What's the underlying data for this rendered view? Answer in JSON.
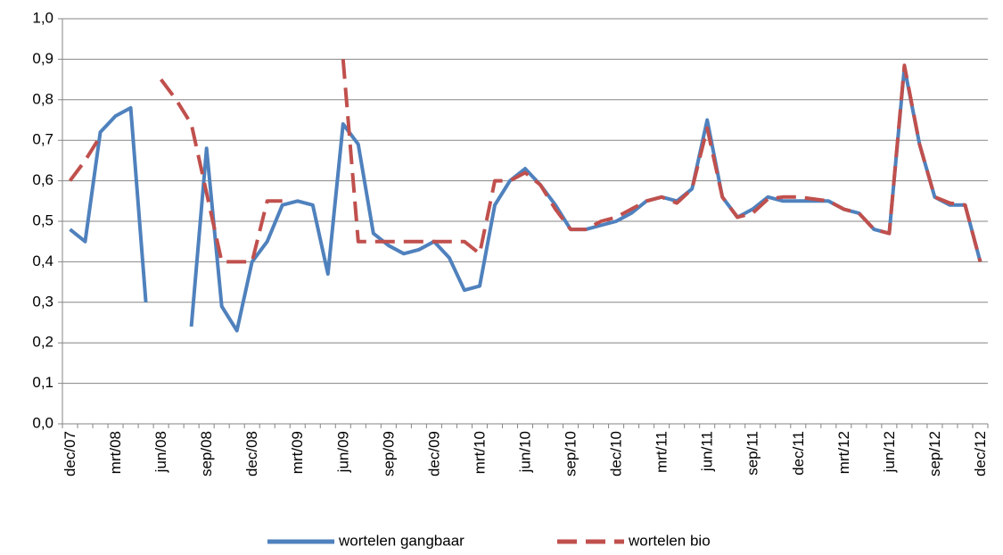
{
  "chart_data": {
    "type": "line",
    "categories": [
      "dec/07",
      null,
      null,
      "mrt/08",
      null,
      null,
      "jun/08",
      null,
      null,
      "sep/08",
      null,
      null,
      "dec/08",
      null,
      null,
      "mrt/09",
      null,
      null,
      "jun/09",
      null,
      null,
      "sep/09",
      null,
      null,
      "dec/09",
      null,
      null,
      "mrt/10",
      null,
      null,
      "jun/10",
      null,
      null,
      "sep/10",
      null,
      null,
      "dec/10",
      null,
      null,
      "mrt/11",
      null,
      null,
      "jun/11",
      null,
      null,
      "sep/11",
      null,
      null,
      "dec/11",
      null,
      null,
      "mrt/12",
      null,
      null,
      "jun/12",
      null,
      null,
      "sep/12",
      null,
      null,
      "dec/12"
    ],
    "series": [
      {
        "name": "wortelen gangbaar",
        "color": "#4f81bd",
        "dash": false,
        "values": [
          0.48,
          0.45,
          0.72,
          0.76,
          0.78,
          0.3,
          null,
          null,
          0.24,
          0.68,
          0.29,
          0.23,
          0.4,
          0.45,
          0.54,
          0.55,
          0.54,
          0.37,
          0.74,
          0.69,
          0.47,
          0.44,
          0.42,
          0.43,
          0.45,
          0.41,
          0.33,
          0.34,
          0.54,
          0.6,
          0.63,
          0.59,
          0.54,
          0.48,
          0.48,
          0.49,
          0.5,
          0.52,
          0.55,
          0.56,
          0.55,
          0.58,
          0.75,
          0.56,
          0.51,
          0.53,
          0.56,
          0.55,
          0.55,
          0.55,
          0.55,
          0.53,
          0.52,
          0.48,
          0.47,
          0.88,
          0.69,
          0.56,
          0.54,
          0.54,
          0.4
        ]
      },
      {
        "name": "wortelen bio",
        "color": "#c0504d",
        "dash": true,
        "values": [
          0.6,
          0.65,
          0.71,
          null,
          null,
          null,
          0.85,
          0.8,
          0.74,
          0.57,
          0.4,
          0.4,
          0.4,
          0.55,
          0.55,
          null,
          null,
          null,
          0.9,
          0.45,
          0.45,
          0.45,
          0.45,
          0.45,
          0.45,
          0.45,
          0.45,
          0.42,
          0.6,
          0.6,
          0.62,
          0.59,
          0.53,
          0.48,
          0.48,
          0.5,
          0.51,
          0.53,
          0.55,
          0.56,
          0.545,
          0.58,
          0.73,
          0.56,
          0.51,
          0.52,
          0.555,
          0.56,
          0.56,
          0.555,
          0.55,
          0.53,
          0.52,
          0.48,
          0.47,
          0.885,
          0.69,
          0.56,
          0.545,
          0.54,
          0.4
        ]
      }
    ],
    "ylim": [
      0,
      1
    ],
    "yticks": [
      {
        "value": 0,
        "label": "0,0"
      },
      {
        "value": 0.1,
        "label": "0,1"
      },
      {
        "value": 0.2,
        "label": "0,2"
      },
      {
        "value": 0.3,
        "label": "0,3"
      },
      {
        "value": 0.4,
        "label": "0,4"
      },
      {
        "value": 0.5,
        "label": "0,5"
      },
      {
        "value": 0.6,
        "label": "0,6"
      },
      {
        "value": 0.7,
        "label": "0,7"
      },
      {
        "value": 0.8,
        "label": "0,8"
      },
      {
        "value": 0.9,
        "label": "0,9"
      },
      {
        "value": 1,
        "label": "1,0"
      }
    ],
    "grid": true,
    "legend": "bottom"
  }
}
